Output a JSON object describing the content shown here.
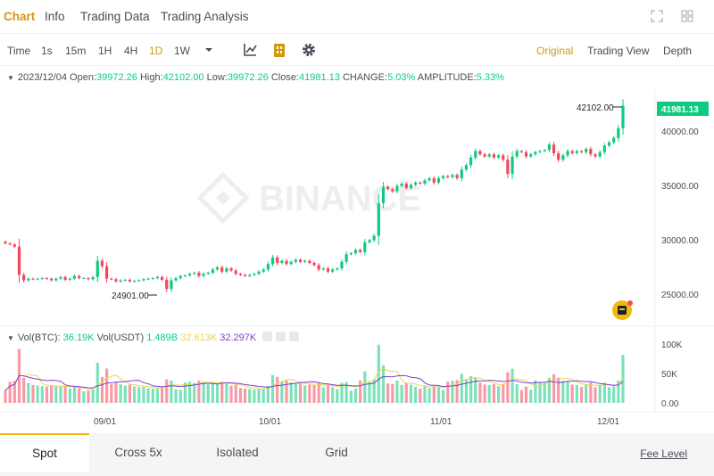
{
  "top_tabs": [
    {
      "label": "Chart",
      "active": true
    },
    {
      "label": "Info",
      "active": false
    },
    {
      "label": "Trading Data",
      "active": false
    },
    {
      "label": "Trading Analysis",
      "active": false
    }
  ],
  "toolbar": {
    "time_label": "Time",
    "intervals": [
      "1s",
      "15m",
      "1H",
      "4H",
      "1D",
      "1W"
    ],
    "active_interval": "1D",
    "more_intervals_icon": "caret-down-icon",
    "icons": [
      "indicator-icon",
      "candle-style-icon",
      "settings-gear-icon"
    ],
    "views": [
      "Original",
      "Trading View",
      "Depth"
    ],
    "active_view": "Original"
  },
  "ohlc": {
    "date": "2023/12/04",
    "open_label": "Open:",
    "open": "39972.26",
    "high_label": "High:",
    "high": "42102.00",
    "low_label": "Low:",
    "low": "39972.26",
    "close_label": "Close:",
    "close": "41981.13",
    "change_label": "CHANGE:",
    "change": "5.03%",
    "amplitude_label": "AMPLITUDE:",
    "amplitude": "5.33%"
  },
  "watermark": "BINANCE",
  "price_axis": {
    "ticks": [
      "40000.00",
      "35000.00",
      "30000.00",
      "25000.00"
    ],
    "current_price": "41981.13",
    "high_marker": "42102.00",
    "low_marker": "24901.00"
  },
  "volume": {
    "label_btc": "Vol(BTC):",
    "value_btc": "36.19K",
    "label_usdt": "Vol(USDT)",
    "value_usdt": "1.489B",
    "ma_1": "32.613K",
    "ma_2": "32.297K",
    "axis_ticks": [
      "100K",
      "50K",
      "0.00"
    ]
  },
  "time_axis": [
    "09/01",
    "10/01",
    "11/01",
    "12/01"
  ],
  "colors": {
    "up": "#0ecb81",
    "down": "#f6465d",
    "accent": "#f0b90b",
    "ma_yellow": "#f0d34a",
    "ma_purple": "#7b3fd1"
  },
  "bottom_tabs": [
    {
      "label": "Spot",
      "active": true
    },
    {
      "label": "Cross 5x",
      "active": false
    },
    {
      "label": "Isolated",
      "active": false
    },
    {
      "label": "Grid",
      "active": false
    }
  ],
  "fee_level": "Fee Level",
  "chart_data": {
    "type": "candlestick",
    "x_start": "2023/07/28",
    "x_end": "2023/12/04",
    "price_ylim": [
      22000,
      43500
    ],
    "volume_ylim": [
      0,
      120000
    ],
    "closes": [
      29300,
      29200,
      29000,
      26400,
      25900,
      26050,
      26000,
      26050,
      26100,
      26050,
      25900,
      26050,
      26200,
      25950,
      26050,
      26300,
      26100,
      26100,
      26000,
      26200,
      27700,
      27200,
      26050,
      26000,
      25800,
      25900,
      25950,
      25800,
      25850,
      25900,
      26000,
      26050,
      26100,
      26200,
      25950,
      25100,
      25900,
      26100,
      26300,
      26350,
      26500,
      26600,
      26300,
      26500,
      26600,
      26900,
      27100,
      26700,
      27000,
      26800,
      26500,
      26400,
      26300,
      26400,
      26500,
      26700,
      26900,
      27400,
      28000,
      27500,
      27700,
      27400,
      27600,
      27800,
      27600,
      27700,
      27500,
      27300,
      26900,
      27000,
      26700,
      26900,
      27000,
      27600,
      28300,
      28400,
      28700,
      28500,
      29400,
      29600,
      30000,
      33000,
      34500,
      34300,
      34100,
      34600,
      34800,
      34400,
      34700,
      34900,
      34800,
      35100,
      35300,
      34900,
      35300,
      35500,
      35400,
      35600,
      35300,
      36100,
      36500,
      37200,
      37800,
      37500,
      37300,
      37500,
      37200,
      37400,
      37000,
      35700,
      37300,
      37800,
      37700,
      37300,
      37500,
      37700,
      37800,
      37900,
      38400,
      37600,
      37000,
      37400,
      37800,
      37600,
      37800,
      37700,
      38000,
      37500,
      37300,
      37700,
      38300,
      38600,
      39000,
      39900,
      41981
    ]
  }
}
